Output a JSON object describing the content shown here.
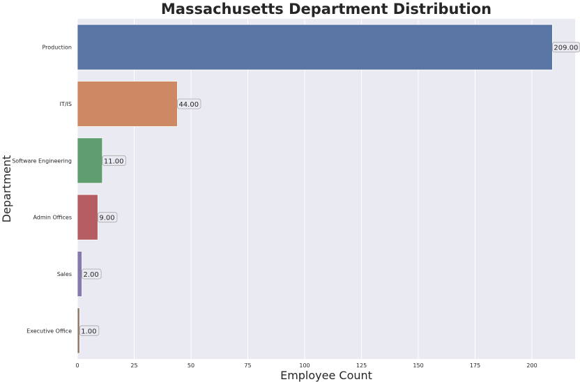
{
  "chart_data": {
    "type": "bar",
    "orientation": "horizontal",
    "title": "Massachusetts Department Distribution",
    "xlabel": "Employee Count",
    "ylabel": "Department",
    "categories": [
      "Production",
      "IT/IS",
      "Software Engineering",
      "Admin Offices",
      "Sales",
      "Executive Office"
    ],
    "values": [
      209,
      44,
      11,
      9,
      2,
      1
    ],
    "data_labels": [
      "209.00",
      "44.00",
      "11.00",
      "9.00",
      "2.00",
      "1.00"
    ],
    "colors": [
      "#5875a4",
      "#cc8963",
      "#5f9e6e",
      "#b55d60",
      "#857aab",
      "#8d7866"
    ],
    "xlim": [
      0,
      219
    ],
    "xticks": [
      0,
      25,
      50,
      75,
      100,
      125,
      150,
      175,
      200
    ],
    "grid": true,
    "background": "#eaeaf2"
  }
}
